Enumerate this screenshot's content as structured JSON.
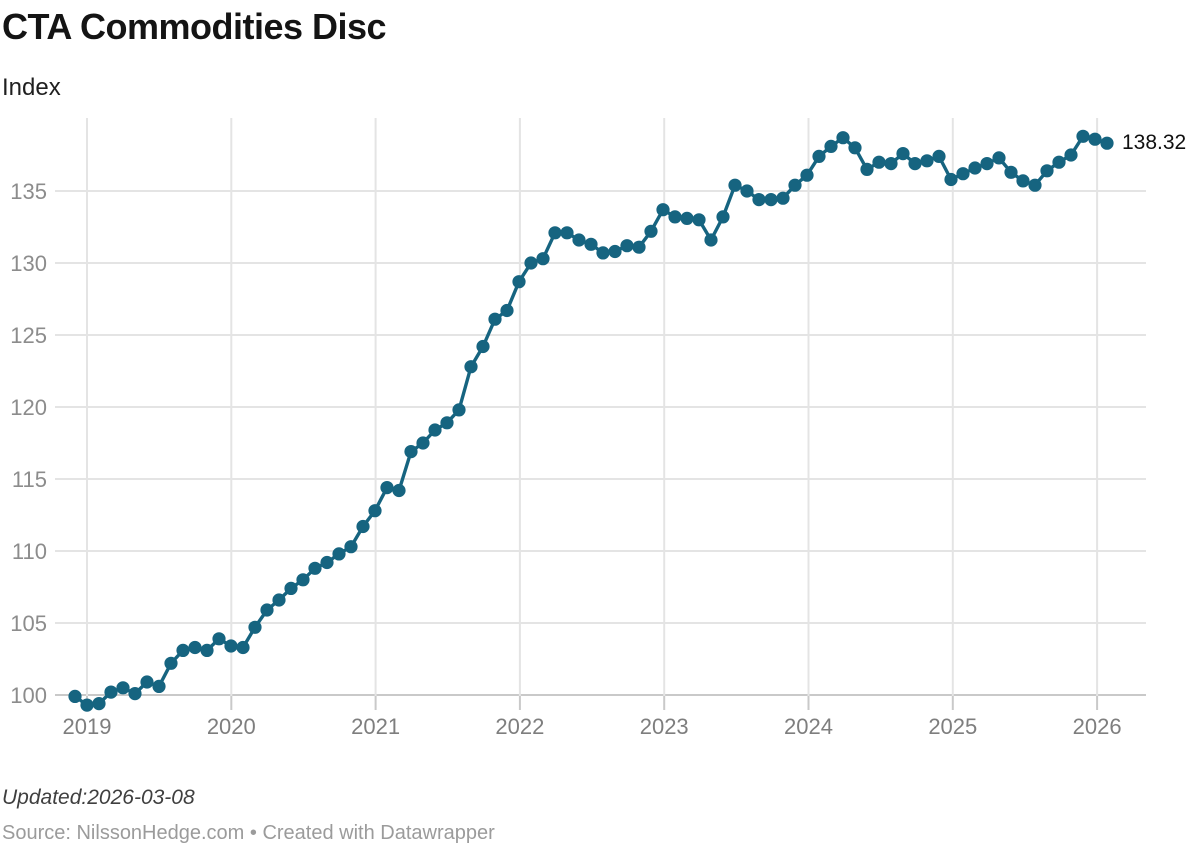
{
  "header": {
    "title": "CTA Commodities Disc",
    "subtitle": "Index"
  },
  "footer": {
    "updated": "Updated:2026-03-08",
    "source": "Source: NilssonHedge.com • Created with Datawrapper"
  },
  "chart_data": {
    "type": "line",
    "title": "CTA Commodities Disc",
    "ylabel": "Index",
    "legend": "none",
    "grid": true,
    "series_color": "#166480",
    "frequency": "monthly",
    "start_month": "2018-12",
    "end_month": "2026-02",
    "values": [
      99.9,
      99.3,
      99.4,
      100.2,
      100.5,
      100.1,
      100.9,
      100.6,
      102.2,
      103.1,
      103.3,
      103.1,
      103.9,
      103.4,
      103.3,
      104.7,
      105.9,
      106.6,
      107.4,
      108.0,
      108.8,
      109.2,
      109.8,
      110.3,
      111.7,
      112.8,
      114.4,
      114.2,
      116.9,
      117.5,
      118.4,
      118.9,
      119.8,
      122.8,
      124.2,
      126.1,
      126.7,
      128.7,
      130.0,
      130.3,
      132.1,
      132.1,
      131.6,
      131.3,
      130.7,
      130.8,
      131.2,
      131.1,
      132.2,
      133.7,
      133.2,
      133.1,
      133.0,
      131.6,
      133.2,
      135.4,
      135.0,
      134.4,
      134.4,
      134.5,
      135.4,
      136.1,
      137.4,
      138.1,
      138.7,
      138.0,
      136.5,
      137.0,
      136.9,
      137.6,
      136.9,
      137.1,
      137.4,
      135.8,
      136.2,
      136.6,
      136.9,
      137.3,
      136.3,
      135.7,
      135.4,
      136.4,
      137.0,
      137.5,
      138.8,
      138.6,
      138.32
    ],
    "last_value": 138.32,
    "end_label": "138.32",
    "y_ticks": [
      100,
      105,
      110,
      115,
      120,
      125,
      130,
      135
    ],
    "x_tick_labels": [
      "2019",
      "2020",
      "2021",
      "2022",
      "2023",
      "2024",
      "2025",
      "2026"
    ],
    "ylim": [
      99,
      139.6
    ],
    "legend_position": "none"
  }
}
